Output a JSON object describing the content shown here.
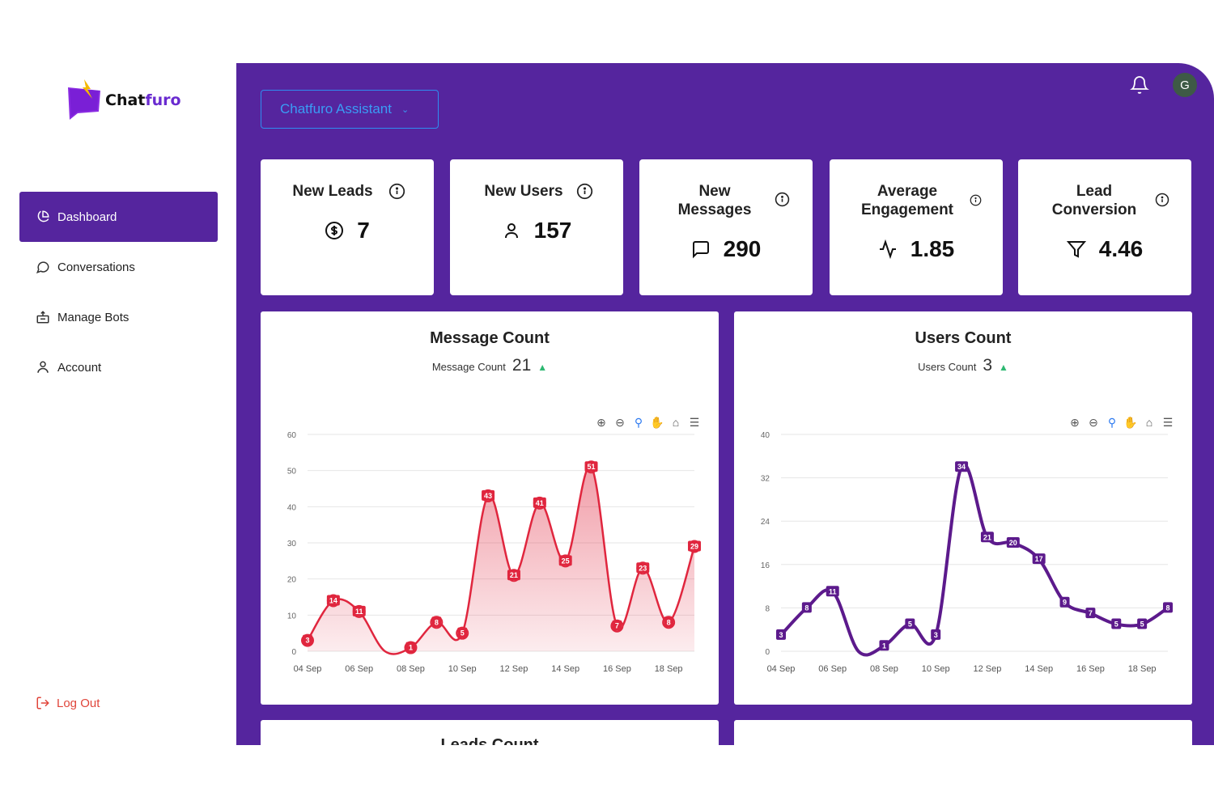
{
  "brand": {
    "name_part1": "Chat",
    "name_part2": "furo",
    "accent": "#6a2bd0",
    "bolt_color": "#f5b800"
  },
  "sidebar": {
    "items": [
      {
        "label": "Dashboard",
        "icon": "pie-chart-icon",
        "active": true
      },
      {
        "label": "Conversations",
        "icon": "chat-bubble-icon",
        "active": false
      },
      {
        "label": "Manage Bots",
        "icon": "bot-icon",
        "active": false
      },
      {
        "label": "Account",
        "icon": "user-icon",
        "active": false
      }
    ],
    "logout_label": "Log Out"
  },
  "header": {
    "assistant_select": "Chatfuro Assistant",
    "avatar_initial": "G"
  },
  "stats": [
    {
      "title_lines": [
        "New Leads"
      ],
      "value": "7",
      "icon": "dollar-icon"
    },
    {
      "title_lines": [
        "New Users"
      ],
      "value": "157",
      "icon": "user-icon"
    },
    {
      "title_lines": [
        "New",
        "Messages"
      ],
      "value": "290",
      "icon": "message-icon"
    },
    {
      "title_lines": [
        "Average",
        "Engagement"
      ],
      "value": "1.85",
      "icon": "activity-icon"
    },
    {
      "title_lines": [
        "Lead",
        "Conversion"
      ],
      "value": "4.46",
      "icon": "filter-icon"
    }
  ],
  "charts_header": [
    {
      "title": "Message Count",
      "sub_label": "Message Count",
      "sub_value": "21"
    },
    {
      "title": "Users Count",
      "sub_label": "Users Count",
      "sub_value": "3"
    }
  ],
  "bottom": {
    "left_title": "Leads Count"
  },
  "colors": {
    "main_bg": "#55259e",
    "message_series": "#e0263e",
    "users_series": "#5c1a8c",
    "up_arrow": "#2eb872"
  },
  "chart_data": [
    {
      "type": "area",
      "title": "Message Count",
      "x": [
        "04 Sep",
        "05 Sep",
        "06 Sep",
        "07 Sep",
        "08 Sep",
        "09 Sep",
        "10 Sep",
        "11 Sep",
        "12 Sep",
        "13 Sep",
        "14 Sep",
        "15 Sep",
        "16 Sep",
        "17 Sep",
        "18 Sep",
        "19 Sep"
      ],
      "xticks": [
        "04 Sep",
        "06 Sep",
        "08 Sep",
        "10 Sep",
        "12 Sep",
        "14 Sep",
        "16 Sep",
        "18 Sep"
      ],
      "values": [
        3,
        14,
        11,
        null,
        1,
        8,
        5,
        43,
        21,
        41,
        25,
        51,
        7,
        23,
        8,
        29
      ],
      "ylim": [
        0,
        60
      ],
      "yticks": [
        0,
        10,
        20,
        30,
        40,
        50,
        60
      ],
      "grid": true
    },
    {
      "type": "line",
      "title": "Users Count",
      "x": [
        "04 Sep",
        "05 Sep",
        "06 Sep",
        "07 Sep",
        "08 Sep",
        "09 Sep",
        "10 Sep",
        "11 Sep",
        "12 Sep",
        "13 Sep",
        "14 Sep",
        "15 Sep",
        "16 Sep",
        "17 Sep",
        "18 Sep",
        "19 Sep"
      ],
      "xticks": [
        "04 Sep",
        "06 Sep",
        "08 Sep",
        "10 Sep",
        "12 Sep",
        "14 Sep",
        "16 Sep",
        "18 Sep"
      ],
      "values": [
        3,
        8,
        11,
        null,
        1,
        5,
        3,
        34,
        21,
        20,
        17,
        9,
        7,
        5,
        5,
        8
      ],
      "ylim": [
        0,
        40
      ],
      "yticks": [
        0,
        8,
        16,
        24,
        32,
        40
      ],
      "grid": true
    }
  ]
}
